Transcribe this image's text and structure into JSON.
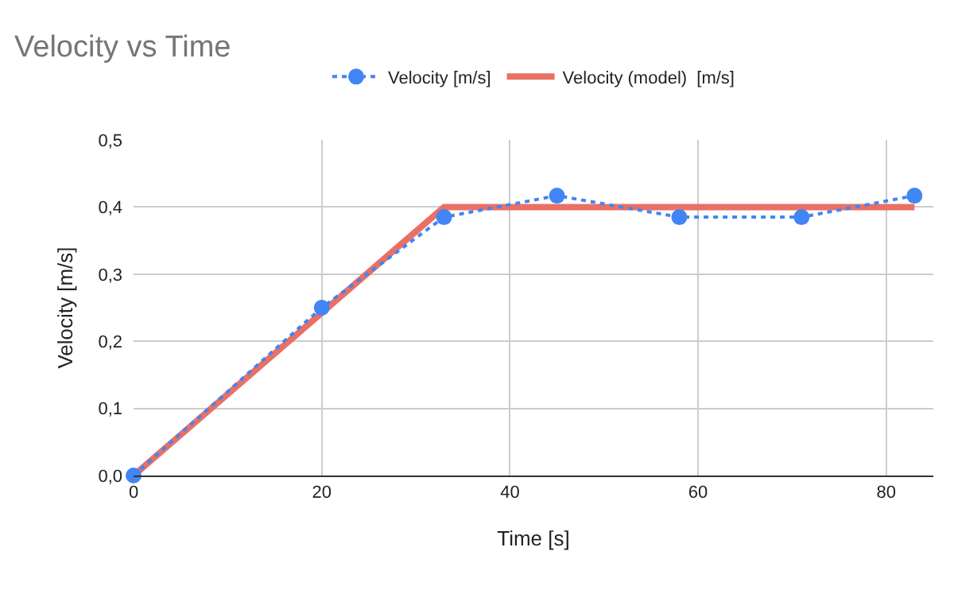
{
  "chart_data": {
    "type": "line",
    "title": "Velocity vs Time",
    "xlabel": "Time [s]",
    "ylabel": "Velocity [m/s]",
    "series": [
      {
        "name": "Velocity [m/s]",
        "color": "#4285f4",
        "x": [
          0,
          20,
          33,
          45,
          58,
          71,
          83
        ],
        "values": [
          0,
          0.25,
          0.385,
          0.417,
          0.385,
          0.385,
          0.417
        ],
        "marker": "circle",
        "line_style": "dotted"
      },
      {
        "name": "Velocity (model)  [m/s]",
        "color": "#ea7066",
        "x": [
          0,
          33,
          83
        ],
        "values": [
          0,
          0.4,
          0.4
        ],
        "marker": "none",
        "line_style": "solid"
      }
    ],
    "xlim": [
      0,
      85
    ],
    "xticks": [
      0,
      20,
      40,
      60,
      80
    ],
    "ylim": [
      0,
      0.5
    ],
    "yticks": [
      {
        "value": 0,
        "label": "0,0"
      },
      {
        "value": 0.1,
        "label": "0,1"
      },
      {
        "value": 0.2,
        "label": "0,2"
      },
      {
        "value": 0.3,
        "label": "0,3"
      },
      {
        "value": 0.4,
        "label": "0,4"
      },
      {
        "value": 0.5,
        "label": "0,5"
      }
    ],
    "grid": true,
    "legend": "top"
  }
}
